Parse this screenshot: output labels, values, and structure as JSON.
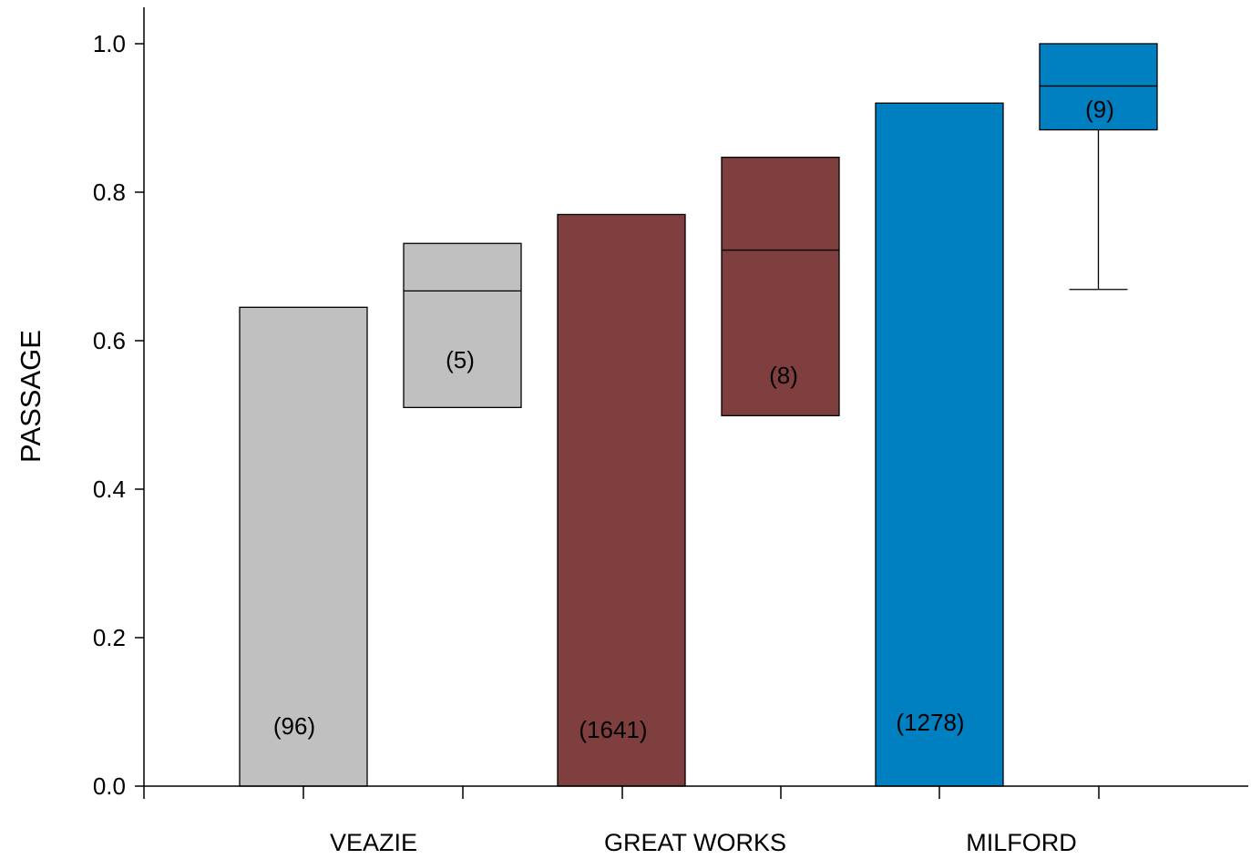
{
  "chart_data": {
    "type": "bar",
    "title": "",
    "xlabel": "",
    "ylabel": "PASSAGE",
    "ylim": [
      0,
      1.0
    ],
    "yticks": [
      "0.0",
      "0.2",
      "0.4",
      "0.6",
      "0.8",
      "1.0"
    ],
    "categories": [
      "VEAZIE",
      "GREAT WORKS",
      "MILFORD"
    ],
    "grid": false,
    "legend": "none",
    "colors": {
      "VEAZIE": "#c0c0c0",
      "GREAT WORKS": "#7f3f3f",
      "MILFORD": "#0080c0"
    },
    "bars": [
      {
        "category": "VEAZIE",
        "value": 0.645,
        "label": "(96)"
      },
      {
        "category": "GREAT WORKS",
        "value": 0.77,
        "label": "(1641)"
      },
      {
        "category": "MILFORD",
        "value": 0.92,
        "label": "(1278)"
      }
    ],
    "boxes": [
      {
        "category": "VEAZIE",
        "q1": 0.51,
        "median": 0.667,
        "q3": 0.731,
        "label": "(5)"
      },
      {
        "category": "GREAT WORKS",
        "q1": 0.499,
        "median": 0.722,
        "q3": 0.847,
        "label": "(8)"
      },
      {
        "category": "MILFORD",
        "q1": 0.884,
        "median": 0.943,
        "q3": 1.0,
        "whisker_low": 0.669,
        "label": "(9)"
      }
    ]
  }
}
